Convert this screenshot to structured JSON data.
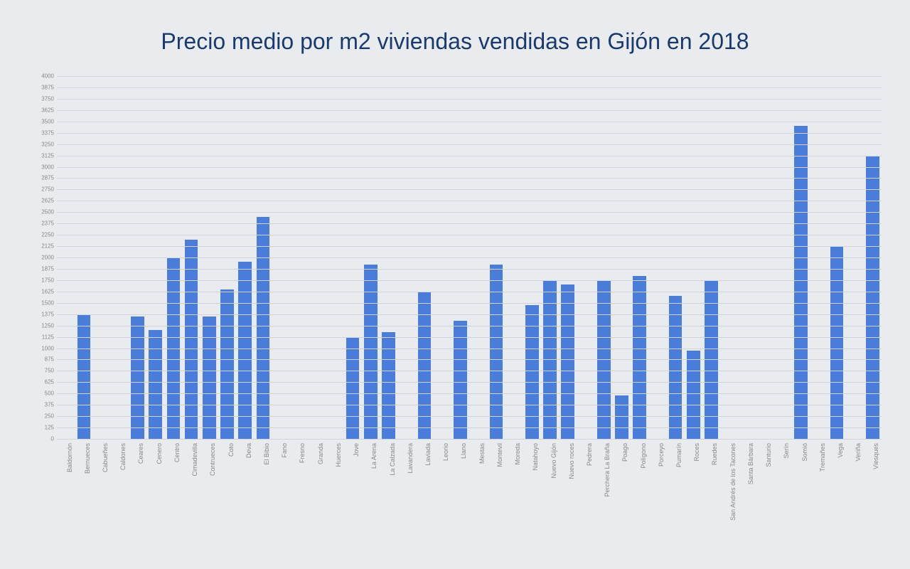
{
  "chart": {
    "type": "bar",
    "title": "Precio medio por m2 viviendas vendidas en Gijón en 2018",
    "title_color": "#1a3a6e",
    "title_fontsize": 32,
    "background_color": "#e9ecef",
    "bar_color": "#4a7ddb",
    "grid_color": "#d0d4d9",
    "axis_label_color": "#888888",
    "x_label_fontsize": 9,
    "y_label_fontsize": 8,
    "bar_width_ratio": 0.74,
    "ylim": [
      0,
      4000
    ],
    "ytick_step": 125,
    "categories": [
      "Baldornón",
      "Bernueces",
      "Cabueñes",
      "Caldones",
      "Ceares",
      "Cenero",
      "Centro",
      "Cimadevilla",
      "Contrueces",
      "Coto",
      "Deva",
      "El Bibio",
      "Fano",
      "Fresno",
      "Granda",
      "Huerces",
      "Jove",
      "La Arena",
      "La Calzada",
      "Lavandera",
      "Laviada",
      "Leorio",
      "Llano",
      "Mestas",
      "Montevil",
      "Moreda",
      "Natahoyo",
      "Nuevo Gijón",
      "Nuevo roces",
      "Pedrera",
      "Perchera La Braña",
      "Poago",
      "Polígono",
      "Porceyo",
      "Pumarín",
      "Roces",
      "Ruedes",
      "San Andrés de los Tacones",
      "Santa Bárbara",
      "Santurio",
      "Serín",
      "Somió",
      "Tremañes",
      "Vega",
      "Veriña",
      "Viesques"
    ],
    "values": [
      0,
      1375,
      0,
      0,
      1350,
      1200,
      2000,
      2200,
      1350,
      1650,
      1950,
      2450,
      0,
      0,
      0,
      0,
      1125,
      1925,
      1175,
      0,
      1625,
      0,
      1300,
      0,
      1925,
      0,
      1475,
      1750,
      1700,
      0,
      1750,
      475,
      1800,
      0,
      1575,
      970,
      1750,
      0,
      0,
      0,
      0,
      3450,
      0,
      2125,
      0,
      3125
    ]
  }
}
